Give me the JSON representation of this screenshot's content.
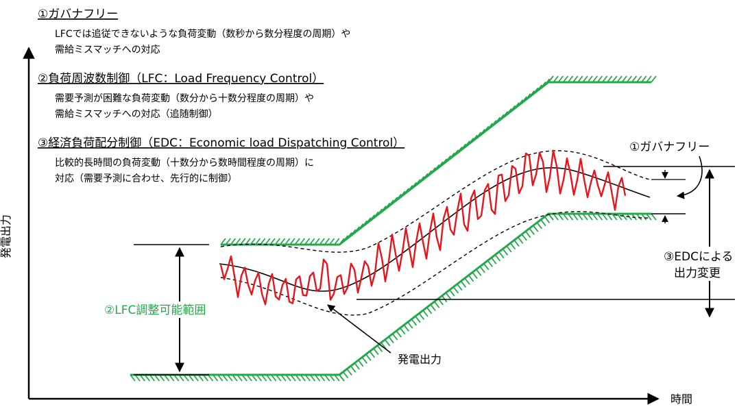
{
  "axes": {
    "y_label": "発電出力",
    "x_label": "時間"
  },
  "legend_items": [
    {
      "heading": "①ガバナフリー",
      "lines": [
        "LFCでは追従できないような負荷変動（数秒から数分程度の周期）や",
        "需給ミスマッチへの対応"
      ]
    },
    {
      "heading": "②負荷周波数制御（LFC：Load Frequency Control）",
      "lines": [
        "需要予測が困難な負荷変動（数分から十数分程度の周期）や",
        "需給ミスマッチへの対応（追随制御）"
      ]
    },
    {
      "heading": "③経済負荷配分制御（EDC：Economic load Dispatching Control）",
      "lines": [
        "比較的長時間の負荷変動（十数分から数時間程度の周期）に",
        "対応（需要予測に合わせ、先行的に制御）"
      ]
    }
  ],
  "labels": {
    "lfc_range": "②LFC調整可能範囲",
    "governor_free": "①ガバナフリー",
    "edc_line1": "③EDCによる",
    "edc_line2": "出力変更",
    "output": "発電出力"
  },
  "colors": {
    "green": "#22a84a",
    "red": "#e8141b",
    "black": "#000000"
  }
}
